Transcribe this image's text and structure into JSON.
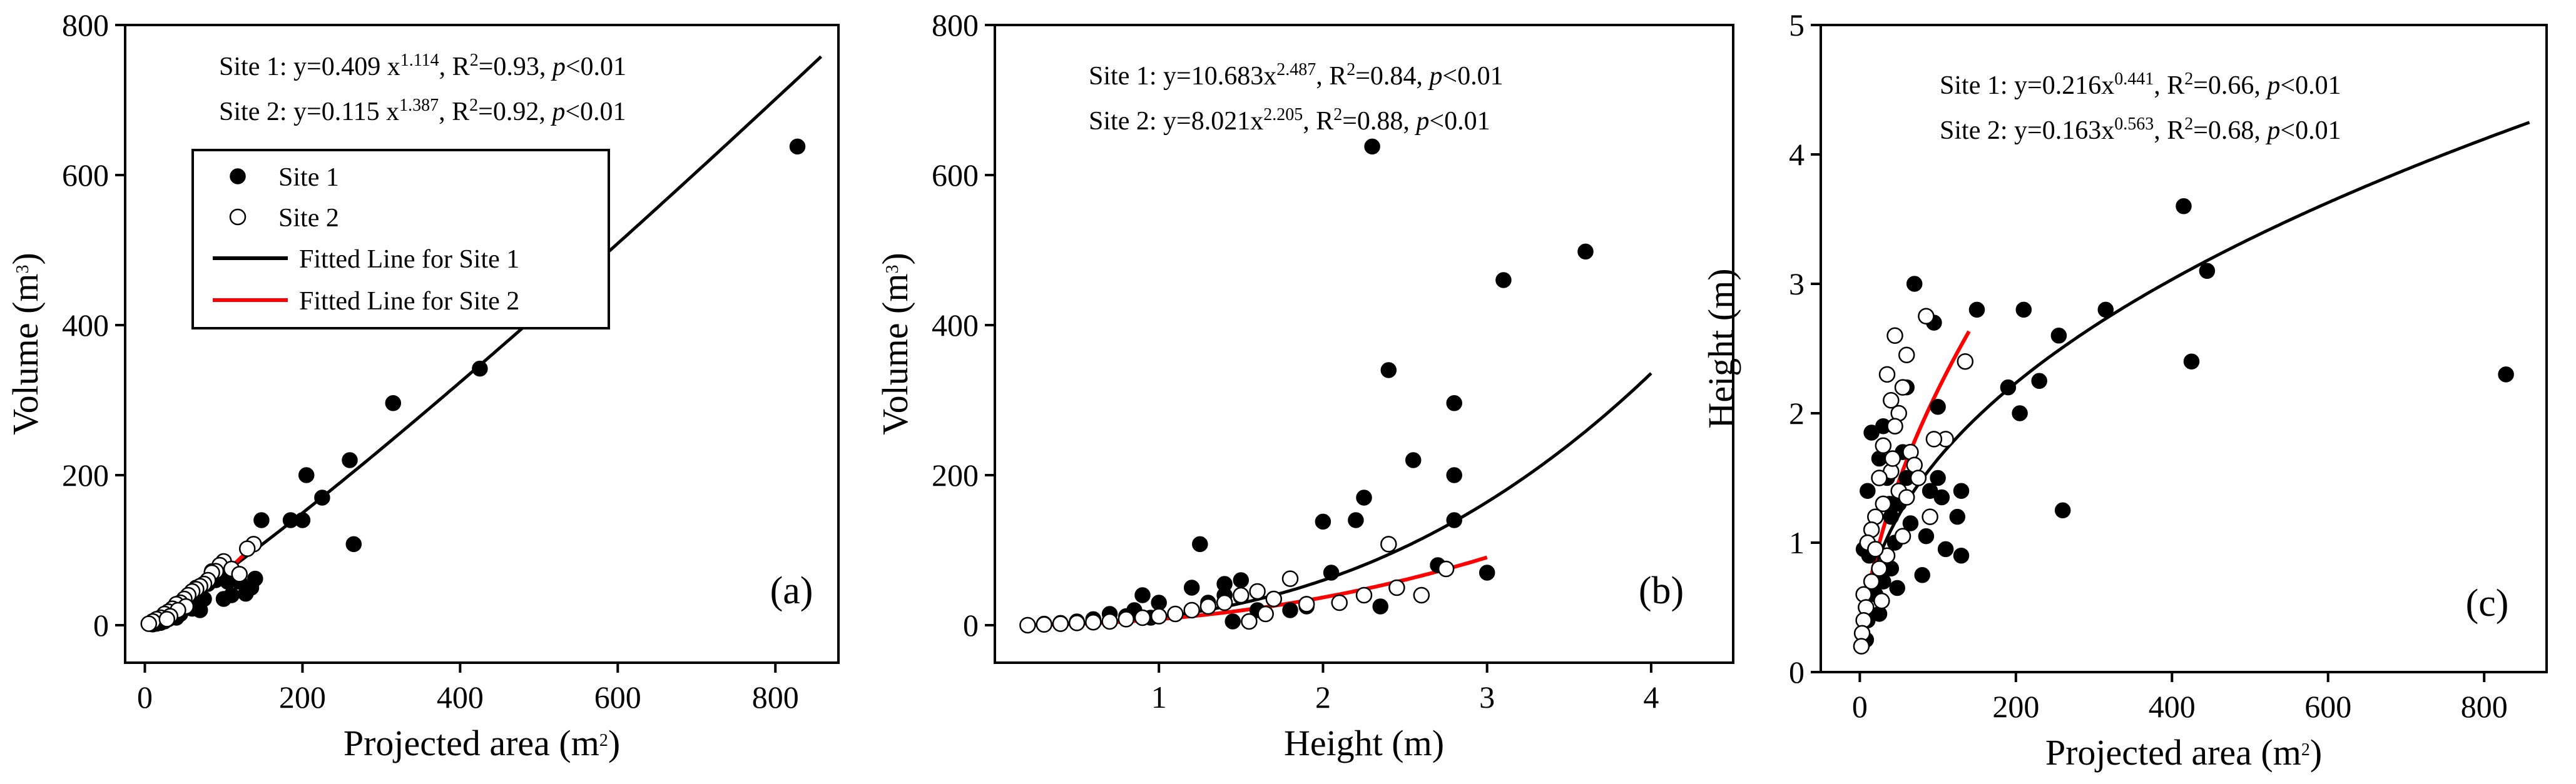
{
  "colors": {
    "site1_fill": "#000000",
    "site2_fill": "#ffffff",
    "site1_line": "#000000",
    "site2_line": "#ff0000",
    "axis": "#000000"
  },
  "legend": {
    "site1": "Site 1",
    "site2": "Site 2",
    "fit1": "Fitted Line for Site 1",
    "fit2": "Fitted Line for Site 2"
  },
  "chart_data": [
    {
      "type": "scatter",
      "panel_label": "(a)",
      "xlabel": {
        "main": "Projected area (m",
        "sup": "2",
        "end": ")"
      },
      "ylabel": {
        "main": "Volume (m",
        "sup": "3",
        "end": ")"
      },
      "xlim": [
        -25,
        880
      ],
      "ylim": [
        -50,
        800
      ],
      "xticks": [
        0,
        200,
        400,
        600,
        800
      ],
      "yticks": [
        0,
        200,
        400,
        600,
        800
      ],
      "legend_position": "upper-left",
      "equations": [
        {
          "pre": "Site 1: y=0.409 x",
          "exp": "1.114",
          "mid": ", R",
          "r2": "2",
          "post": "=0.93, ",
          "p": "p",
          "tail": "<0.01"
        },
        {
          "pre": "Site 2: y=0.115 x",
          "exp": "1.387",
          "mid": ", R",
          "r2": "2",
          "post": "=0.92, ",
          "p": "p",
          "tail": "<0.01"
        }
      ],
      "fits": [
        {
          "name": "Fitted Line for Site 1",
          "a": 0.409,
          "b": 1.114,
          "x_range": [
            0,
            858
          ]
        },
        {
          "name": "Fitted Line for Site 2",
          "a": 0.115,
          "b": 1.387,
          "x_range": [
            0,
            138
          ]
        }
      ],
      "series": [
        {
          "name": "Site 1",
          "points": [
            [
              828,
              638
            ],
            [
              425,
              342
            ],
            [
              315,
              296
            ],
            [
              260,
              220
            ],
            [
              265,
              108
            ],
            [
              225,
              170
            ],
            [
              205,
              200
            ],
            [
              200,
              140
            ],
            [
              185,
              140
            ],
            [
              148,
              140
            ],
            [
              140,
              62
            ],
            [
              135,
              50
            ],
            [
              128,
              42
            ],
            [
              120,
              58
            ],
            [
              110,
              40
            ],
            [
              100,
              35
            ],
            [
              95,
              68
            ],
            [
              85,
              72
            ],
            [
              90,
              60
            ],
            [
              80,
              55
            ],
            [
              75,
              35
            ],
            [
              70,
              20
            ],
            [
              60,
              22
            ],
            [
              55,
              30
            ],
            [
              45,
              15
            ],
            [
              40,
              10
            ],
            [
              35,
              12
            ],
            [
              30,
              8
            ],
            [
              25,
              5
            ],
            [
              20,
              3
            ],
            [
              15,
              2
            ],
            [
              10,
              1
            ],
            [
              60,
              40
            ],
            [
              105,
              58
            ],
            [
              65,
              50
            ]
          ]
        },
        {
          "name": "Site 2",
          "points": [
            [
              138,
              108
            ],
            [
              130,
              102
            ],
            [
              100,
              85
            ],
            [
              95,
              80
            ],
            [
              90,
              72
            ],
            [
              85,
              70
            ],
            [
              80,
              60
            ],
            [
              75,
              55
            ],
            [
              70,
              52
            ],
            [
              65,
              48
            ],
            [
              60,
              45
            ],
            [
              55,
              40
            ],
            [
              50,
              35
            ],
            [
              45,
              30
            ],
            [
              40,
              28
            ],
            [
              35,
              22
            ],
            [
              30,
              18
            ],
            [
              25,
              15
            ],
            [
              20,
              10
            ],
            [
              15,
              8
            ],
            [
              10,
              5
            ],
            [
              5,
              2
            ],
            [
              110,
              75
            ],
            [
              120,
              68
            ],
            [
              52,
              25
            ],
            [
              42,
              20
            ],
            [
              32,
              12
            ],
            [
              28,
              8
            ]
          ]
        }
      ]
    },
    {
      "type": "scatter",
      "panel_label": "(b)",
      "xlabel": {
        "main": "Height (m)",
        "sup": "",
        "end": ""
      },
      "ylabel": {
        "main": "Volume (m",
        "sup": "3",
        "end": ")"
      },
      "xlim": [
        0,
        4.5
      ],
      "ylim": [
        -50,
        800
      ],
      "xticks": [
        1,
        2,
        3,
        4
      ],
      "yticks": [
        0,
        200,
        400,
        600,
        800
      ],
      "legend_position": "none",
      "equations": [
        {
          "pre": "Site 1: y=10.683x",
          "exp": "2.487",
          "mid": ", R",
          "r2": "2",
          "post": "=0.84, ",
          "p": "p",
          "tail": "<0.01"
        },
        {
          "pre": "Site 2: y=8.021x",
          "exp": "2.205",
          "mid": ", R",
          "r2": "2",
          "post": "=0.88, ",
          "p": "p",
          "tail": "<0.01"
        }
      ],
      "fits": [
        {
          "name": "Fitted Line for Site 1",
          "a": 10.683,
          "b": 2.487,
          "x_range": [
            0.2,
            4.0
          ]
        },
        {
          "name": "Fitted Line for Site 2",
          "a": 8.021,
          "b": 2.205,
          "x_range": [
            0.2,
            3.0
          ]
        }
      ],
      "series": [
        {
          "name": "Site 1",
          "points": [
            [
              2.3,
              638
            ],
            [
              3.6,
              498
            ],
            [
              3.1,
              460
            ],
            [
              2.4,
              340
            ],
            [
              2.8,
              296
            ],
            [
              2.55,
              220
            ],
            [
              2.8,
              200
            ],
            [
              2.25,
              170
            ],
            [
              2.8,
              140
            ],
            [
              2.2,
              140
            ],
            [
              2.0,
              138
            ],
            [
              1.25,
              108
            ],
            [
              2.7,
              80
            ],
            [
              3.0,
              70
            ],
            [
              2.05,
              70
            ],
            [
              1.5,
              60
            ],
            [
              1.4,
              55
            ],
            [
              1.4,
              40
            ],
            [
              1.2,
              50
            ],
            [
              0.9,
              40
            ],
            [
              1.0,
              30
            ],
            [
              0.95,
              10
            ],
            [
              0.8,
              12
            ],
            [
              0.7,
              15
            ],
            [
              1.5,
              38
            ],
            [
              1.8,
              20
            ],
            [
              1.9,
              25
            ],
            [
              1.3,
              30
            ],
            [
              1.1,
              15
            ],
            [
              0.6,
              8
            ],
            [
              0.5,
              5
            ],
            [
              0.4,
              3
            ],
            [
              0.3,
              2
            ],
            [
              0.2,
              0
            ],
            [
              1.6,
              20
            ],
            [
              0.85,
              20
            ],
            [
              1.45,
              5
            ],
            [
              2.35,
              25
            ]
          ]
        },
        {
          "name": "Site 2",
          "points": [
            [
              2.4,
              108
            ],
            [
              2.75,
              75
            ],
            [
              2.45,
              50
            ],
            [
              2.6,
              40
            ],
            [
              1.8,
              62
            ],
            [
              1.6,
              45
            ],
            [
              1.5,
              40
            ],
            [
              1.7,
              35
            ],
            [
              1.9,
              28
            ],
            [
              1.3,
              25
            ],
            [
              1.1,
              15
            ],
            [
              0.9,
              10
            ],
            [
              0.8,
              8
            ],
            [
              0.7,
              5
            ],
            [
              0.6,
              4
            ],
            [
              0.5,
              3
            ],
            [
              0.4,
              2
            ],
            [
              0.3,
              1
            ],
            [
              0.2,
              0
            ],
            [
              1.2,
              20
            ],
            [
              1.0,
              12
            ],
            [
              1.4,
              30
            ],
            [
              1.55,
              5
            ],
            [
              1.65,
              15
            ],
            [
              2.1,
              30
            ],
            [
              2.25,
              40
            ]
          ]
        }
      ]
    },
    {
      "type": "scatter",
      "panel_label": "(c)",
      "xlabel": {
        "main": "Projected area (m",
        "sup": "2",
        "end": ")"
      },
      "ylabel": {
        "main": "Height (m)",
        "sup": "",
        "end": ""
      },
      "xlim": [
        -50,
        880
      ],
      "ylim": [
        0,
        5
      ],
      "xticks": [
        0,
        200,
        400,
        600,
        800
      ],
      "yticks": [
        0,
        1,
        2,
        3,
        4,
        5
      ],
      "legend_position": "none",
      "equations": [
        {
          "pre": "Site 1: y=0.216x",
          "exp": "0.441",
          "mid": ", R",
          "r2": "2",
          "post": "=0.66, ",
          "p": "p",
          "tail": "<0.01"
        },
        {
          "pre": "Site 2: y=0.163x",
          "exp": "0.563",
          "mid": ", R",
          "r2": "2",
          "post": "=0.68, ",
          "p": "p",
          "tail": "<0.01"
        }
      ],
      "fits": [
        {
          "name": "Fitted Line for Site 1",
          "a": 0.216,
          "b": 0.441,
          "x_range": [
            1,
            858
          ]
        },
        {
          "name": "Fitted Line for Site 2",
          "a": 0.163,
          "b": 0.563,
          "x_range": [
            1,
            140
          ]
        }
      ],
      "series": [
        {
          "name": "Site 1",
          "points": [
            [
              415,
              3.6
            ],
            [
              445,
              3.1
            ],
            [
              315,
              2.8
            ],
            [
              210,
              2.8
            ],
            [
              150,
              2.8
            ],
            [
              70,
              3.0
            ],
            [
              95,
              2.7
            ],
            [
              255,
              2.6
            ],
            [
              230,
              2.25
            ],
            [
              190,
              2.2
            ],
            [
              205,
              2.0
            ],
            [
              425,
              2.4
            ],
            [
              828,
              2.3
            ],
            [
              260,
              1.25
            ],
            [
              100,
              2.05
            ],
            [
              60,
              2.2
            ],
            [
              130,
              1.4
            ],
            [
              125,
              1.2
            ],
            [
              130,
              0.9
            ],
            [
              110,
              0.95
            ],
            [
              80,
              0.75
            ],
            [
              100,
              1.5
            ],
            [
              90,
              1.4
            ],
            [
              60,
              1.5
            ],
            [
              50,
              1.3
            ],
            [
              45,
              1.0
            ],
            [
              40,
              0.8
            ],
            [
              30,
              0.7
            ],
            [
              20,
              0.6
            ],
            [
              10,
              0.4
            ],
            [
              8,
              0.25
            ],
            [
              15,
              1.85
            ],
            [
              30,
              1.9
            ],
            [
              25,
              1.65
            ],
            [
              35,
              1.5
            ],
            [
              40,
              1.2
            ],
            [
              20,
              1.2
            ],
            [
              10,
              1.4
            ],
            [
              5,
              0.95
            ],
            [
              55,
              1.7
            ],
            [
              70,
              1.6
            ],
            [
              65,
              1.15
            ],
            [
              105,
              1.35
            ],
            [
              85,
              1.05
            ],
            [
              48,
              0.65
            ],
            [
              25,
              0.45
            ],
            [
              12,
              0.9
            ],
            [
              38,
              1.3
            ]
          ]
        },
        {
          "name": "Site 2",
          "points": [
            [
              85,
              2.75
            ],
            [
              45,
              2.6
            ],
            [
              60,
              2.45
            ],
            [
              135,
              2.4
            ],
            [
              35,
              2.3
            ],
            [
              55,
              2.2
            ],
            [
              40,
              2.1
            ],
            [
              50,
              2.0
            ],
            [
              45,
              1.9
            ],
            [
              110,
              1.8
            ],
            [
              95,
              1.8
            ],
            [
              30,
              1.75
            ],
            [
              65,
              1.7
            ],
            [
              70,
              1.6
            ],
            [
              40,
              1.55
            ],
            [
              25,
              1.5
            ],
            [
              50,
              1.4
            ],
            [
              60,
              1.35
            ],
            [
              30,
              1.3
            ],
            [
              20,
              1.2
            ],
            [
              15,
              1.1
            ],
            [
              10,
              1.0
            ],
            [
              35,
              0.9
            ],
            [
              25,
              0.8
            ],
            [
              15,
              0.7
            ],
            [
              5,
              0.6
            ],
            [
              8,
              0.5
            ],
            [
              5,
              0.4
            ],
            [
              3,
              0.3
            ],
            [
              2,
              0.2
            ],
            [
              75,
              1.5
            ],
            [
              90,
              1.2
            ],
            [
              20,
              0.95
            ],
            [
              42,
              1.65
            ],
            [
              55,
              1.05
            ],
            [
              28,
              0.55
            ]
          ]
        }
      ]
    }
  ]
}
